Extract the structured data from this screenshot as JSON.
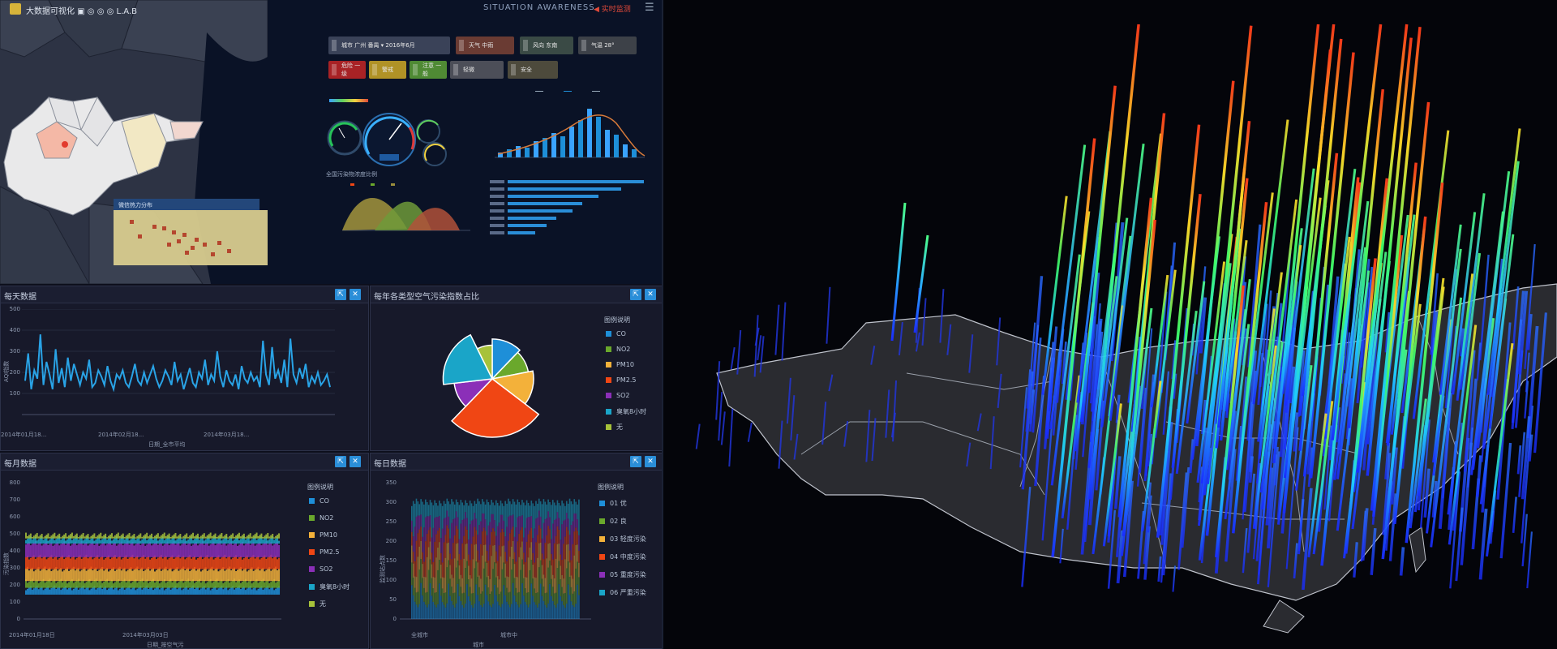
{
  "header": {
    "app_title": "大数据可视化 ▣ ◎ ◎ ◎ L.A.B",
    "sa_title": "SITUATION AWARENESS",
    "sa_tag": "◀ 实时监测",
    "menu_icon": "hamburger-icon"
  },
  "controls": {
    "row1": [
      {
        "label": "城市  广州 番禺 ▾  2016年6月",
        "color": "#3a4258"
      },
      {
        "label": "天气  中雨",
        "color": "#6a3b33"
      },
      {
        "label": "风向  东南",
        "color": "#3a4a45"
      },
      {
        "label": "气温  28°",
        "color": "#3d4148"
      }
    ],
    "row2": [
      {
        "label": "危险  一级",
        "color": "#a82225"
      },
      {
        "label": "警戒",
        "color": "#b09226"
      },
      {
        "label": "注意  一般",
        "color": "#4f8a34"
      },
      {
        "label": "轻微",
        "color": "#4c4e58"
      },
      {
        "label": "安全",
        "color": "#4d4a3c"
      }
    ]
  },
  "mini_area_chart_title": "全国污染物浓度比例",
  "panels": {
    "p1": {
      "title": "每天数据",
      "expand_icon": "expand-icon",
      "close_icon": "close-icon"
    },
    "p2": {
      "title": "每年各类型空气污染指数占比",
      "expand_icon": "expand-icon",
      "close_icon": "close-icon"
    },
    "p3": {
      "title": "每月数据",
      "expand_icon": "expand-icon",
      "close_icon": "close-icon"
    },
    "p4": {
      "title": "每日数据",
      "expand_icon": "expand-icon",
      "close_icon": "close-icon"
    }
  },
  "daily_chart": {
    "type": "line",
    "y_ticks": [
      "500",
      "400",
      "300",
      "200",
      "100"
    ],
    "x_ticks": [
      "2014年01月18...",
      "2014年02月18...",
      "2014年03月18..."
    ],
    "x_name": "日期_全市平均",
    "y_name": "AQI指数",
    "color": "#29a3e6",
    "values": [
      160,
      290,
      120,
      210,
      170,
      380,
      140,
      250,
      190,
      120,
      310,
      150,
      220,
      130,
      270,
      160,
      240,
      190,
      140,
      200,
      170,
      260,
      130,
      150,
      210,
      180,
      140,
      230,
      160,
      120,
      190,
      170,
      210,
      150,
      130,
      180,
      240,
      160,
      140,
      200,
      150,
      190,
      230,
      170,
      130,
      160,
      210,
      180,
      140,
      250,
      160,
      190,
      120,
      170,
      220,
      150,
      130,
      200,
      170,
      260,
      140,
      190,
      160,
      300,
      180,
      130,
      210,
      160,
      140,
      190,
      120,
      230,
      170,
      150,
      200,
      160,
      180,
      130,
      350,
      190,
      140,
      320,
      170,
      210,
      150,
      260,
      130,
      360,
      190,
      150,
      220,
      170,
      240,
      130,
      180,
      150,
      200,
      140,
      160,
      190,
      130
    ]
  },
  "pie_chart": {
    "type": "pie",
    "legend_title": "图例说明",
    "slices": [
      {
        "name": "CO",
        "color": "#1e8fd8",
        "value": 10
      },
      {
        "name": "NO2",
        "color": "#6aa82c",
        "value": 8
      },
      {
        "name": "PM10",
        "color": "#f3b13a",
        "value": 11
      },
      {
        "name": "PM2.5",
        "color": "#f04614",
        "value": 22
      },
      {
        "name": "SO2",
        "color": "#8b2fb8",
        "value": 9
      },
      {
        "name": "臭氧8小时",
        "color": "#1aa5c8",
        "value": 16
      },
      {
        "name": "无",
        "color": "#a7c23a",
        "value": 6
      }
    ]
  },
  "monthly_chart": {
    "type": "area",
    "legend_title": "图例说明",
    "y_ticks": [
      "800",
      "700",
      "600",
      "500",
      "400",
      "300",
      "200",
      "100",
      "0"
    ],
    "x_ticks": [
      "2014年01月18日",
      "2014年03月03日"
    ],
    "x_name": "日期_按空气污",
    "y_name": "污染指数",
    "series": [
      {
        "name": "CO",
        "color": "#1e8fd8"
      },
      {
        "name": "NO2",
        "color": "#6aa82c"
      },
      {
        "name": "PM10",
        "color": "#f3b13a"
      },
      {
        "name": "PM2.5",
        "color": "#f04614"
      },
      {
        "name": "SO2",
        "color": "#8b2fb8"
      },
      {
        "name": "臭氧8小时",
        "color": "#1aa5c8"
      },
      {
        "name": "无",
        "color": "#a7c23a"
      }
    ]
  },
  "daily_stack_chart": {
    "type": "bar",
    "legend_title": "图例说明",
    "y_ticks": [
      "350",
      "300",
      "250",
      "200",
      "150",
      "100",
      "50",
      "0"
    ],
    "x_ticks": [
      "全城市",
      "城市中"
    ],
    "x_name": "城市",
    "y_name": "监测站点数",
    "series": [
      {
        "name": "01 优",
        "color": "#1e8fd8"
      },
      {
        "name": "02 良",
        "color": "#6aa82c"
      },
      {
        "name": "03 轻度污染",
        "color": "#f3b13a"
      },
      {
        "name": "04 中度污染",
        "color": "#f04614"
      },
      {
        "name": "05 重度污染",
        "color": "#8b2fb8"
      },
      {
        "name": "06 严重污染",
        "color": "#1aa5c8"
      }
    ]
  }
}
